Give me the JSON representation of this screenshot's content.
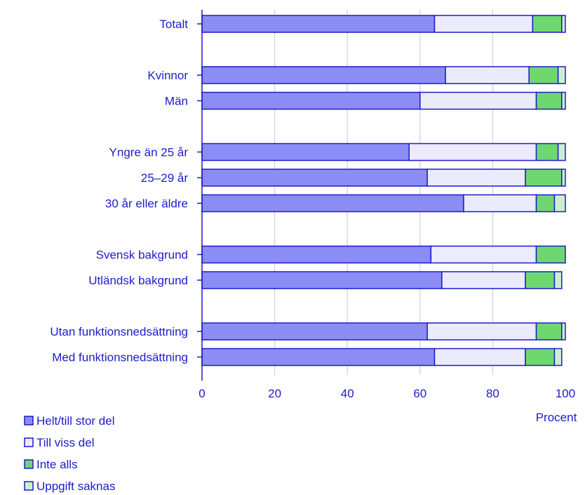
{
  "chart_data": {
    "type": "bar",
    "orientation": "horizontal",
    "stacked": true,
    "categories": [
      "Totalt",
      "Kvinnor",
      "Män",
      "Yngre än 25 år",
      "25–29 år",
      "30 år eller äldre",
      "Svensk bakgrund",
      "Utländsk bakgrund",
      "Utan funktionsnedsättning",
      "Med funktionsnedsättning"
    ],
    "groups": [
      [
        0
      ],
      [
        1,
        2
      ],
      [
        3,
        4,
        5
      ],
      [
        6,
        7
      ],
      [
        8,
        9
      ]
    ],
    "series": [
      {
        "name": "Helt/till stor del",
        "color": "#8c8cf5",
        "values": [
          64,
          67,
          60,
          57,
          62,
          72,
          63,
          66,
          62,
          64
        ]
      },
      {
        "name": "Till viss del",
        "color": "#ebebfb",
        "values": [
          27,
          23,
          32,
          35,
          27,
          20,
          29,
          23,
          30,
          25
        ]
      },
      {
        "name": "Inte alls",
        "color": "#6ed86e",
        "values": [
          8,
          8,
          7,
          6,
          10,
          5,
          8,
          8,
          7,
          8
        ]
      },
      {
        "name": "Uppgift saknas",
        "color": "#cdeecd",
        "values": [
          1,
          2,
          1,
          2,
          1,
          3,
          0,
          2,
          1,
          2
        ]
      }
    ],
    "xlabel": "Procent",
    "xlim": [
      0,
      100
    ],
    "xticks": [
      0,
      20,
      40,
      60,
      80,
      100
    ],
    "grid": true,
    "legend_position": "bottom-left",
    "text_color": "#1f1acb",
    "bar_outline_color": "#1f1acb",
    "grid_color": "#cfd1ee"
  }
}
